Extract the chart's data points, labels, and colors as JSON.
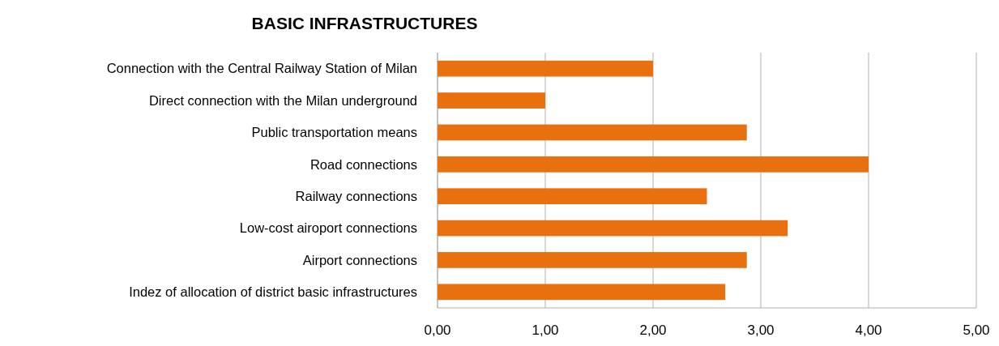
{
  "chart_data": {
    "type": "bar",
    "orientation": "horizontal",
    "title": "BASIC INFRASTRUCTURES",
    "categories": [
      "Connection with the Central Railway Station of Milan",
      "Direct connection with the Milan underground",
      "Public transportation means",
      "Road connections",
      "Railway connections",
      "Low-cost airoport connections",
      "Airport connections",
      "Indez of allocation of district basic infrastructures"
    ],
    "values": [
      2.0,
      1.0,
      2.87,
      4.0,
      2.5,
      3.25,
      2.87,
      2.67
    ],
    "color": "#e8700f",
    "xlim": [
      0,
      5
    ],
    "xticks": [
      {
        "value": 0,
        "label": "0,00"
      },
      {
        "value": 1,
        "label": "1,00"
      },
      {
        "value": 2,
        "label": "2,00"
      },
      {
        "value": 3,
        "label": "3,00"
      },
      {
        "value": 4,
        "label": "4,00"
      },
      {
        "value": 5,
        "label": "5,00"
      }
    ],
    "grid": "x"
  }
}
